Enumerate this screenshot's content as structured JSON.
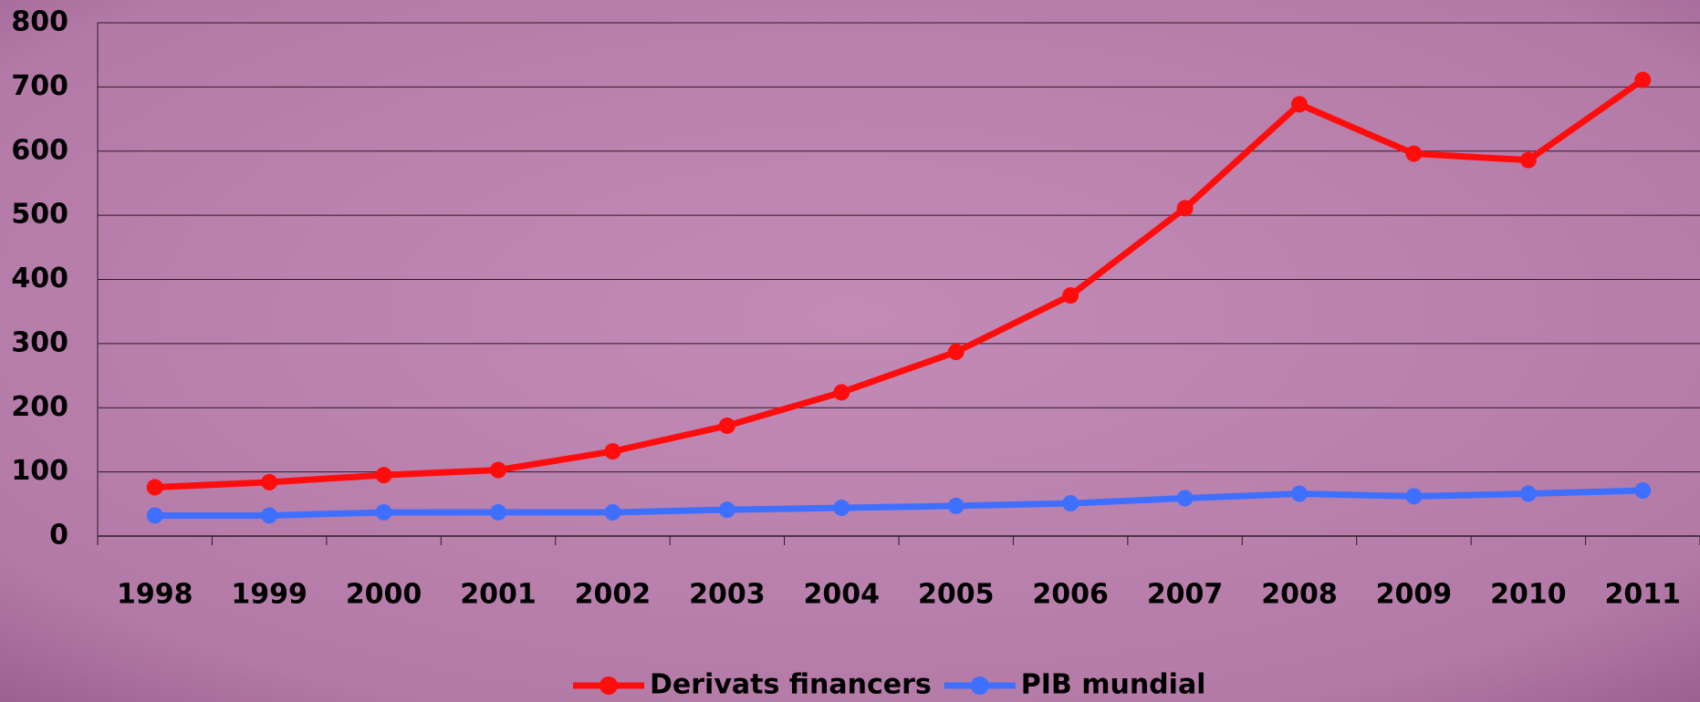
{
  "chart_data": {
    "type": "line",
    "categories": [
      "1998",
      "1999",
      "2000",
      "2001",
      "2002",
      "2003",
      "2004",
      "2005",
      "2006",
      "2007",
      "2008",
      "2009",
      "2010",
      "2011"
    ],
    "series": [
      {
        "name": "Derivats financers",
        "color": "#ff0d0d",
        "values": [
          76,
          84,
          95,
          103,
          132,
          172,
          224,
          287,
          375,
          511,
          673,
          596,
          586,
          711
        ]
      },
      {
        "name": "PIB mundial",
        "color": "#3f6fff",
        "values": [
          32,
          32,
          37,
          37,
          37,
          41,
          44,
          47,
          51,
          59,
          66,
          62,
          66,
          71
        ]
      }
    ],
    "ylim": [
      0,
      800
    ],
    "yticks": [
      0,
      100,
      200,
      300,
      400,
      500,
      600,
      700,
      800
    ],
    "grid": true,
    "legend": "bottom"
  }
}
